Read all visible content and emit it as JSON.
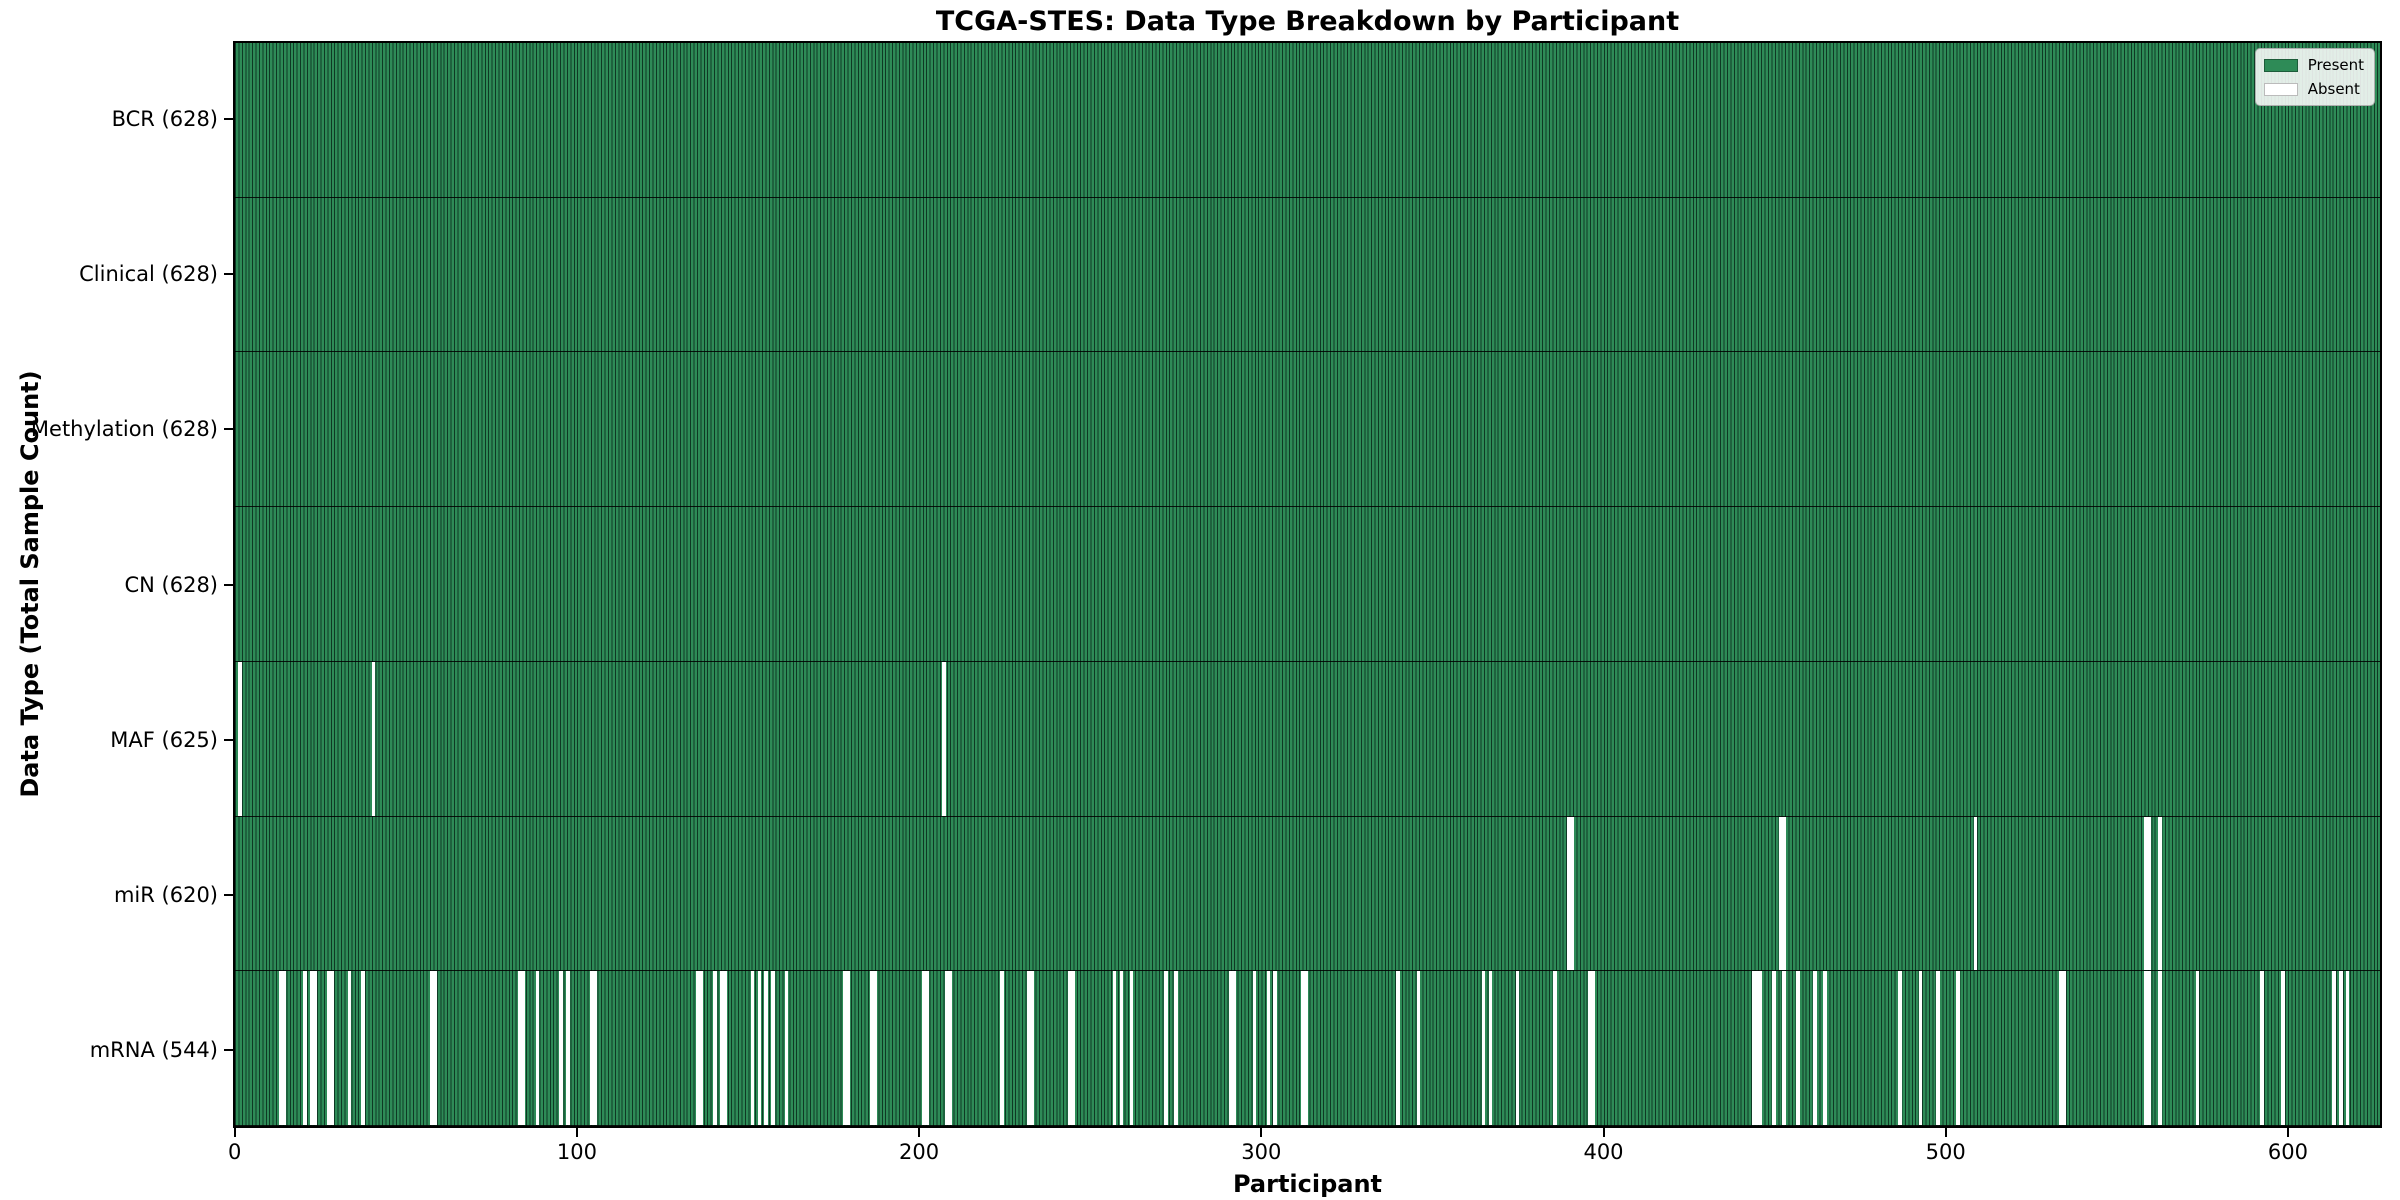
{
  "title": "TCGA-STES: Data Type Breakdown by Participant",
  "axes": {
    "xlabel": "Participant",
    "ylabel": "Data Type (Total Sample Count)"
  },
  "legend": {
    "present_label": "Present",
    "absent_label": "Absent"
  },
  "colors": {
    "present": "#2e8b57",
    "absent": "#ffffff",
    "bar_edge": "#082a1b",
    "spine": "#000000",
    "legend_background": "#fcfcfc",
    "legend_border": "#adadad"
  },
  "chart_data": {
    "type": "heatmap",
    "title": "TCGA-STES: Data Type Breakdown by Participant",
    "xlabel": "Participant",
    "ylabel": "Data Type (Total Sample Count)",
    "x_range": [
      0,
      628
    ],
    "x_ticks": [
      0,
      100,
      200,
      300,
      400,
      500,
      600
    ],
    "n_participants": 628,
    "grid": false,
    "legend_position": "upper right",
    "legend": [
      {
        "label": "Present",
        "color": "#2e8b57"
      },
      {
        "label": "Absent",
        "color": "#ffffff"
      }
    ],
    "rows": [
      {
        "name": "BCR",
        "label": "BCR (628)",
        "present_count": 628,
        "absent_indices": []
      },
      {
        "name": "Clinical",
        "label": "Clinical (628)",
        "present_count": 628,
        "absent_indices": []
      },
      {
        "name": "Methylation",
        "label": "Methylation (628)",
        "present_count": 628,
        "absent_indices": []
      },
      {
        "name": "CN",
        "label": "CN (628)",
        "present_count": 628,
        "absent_indices": []
      },
      {
        "name": "MAF",
        "label": "MAF (625)",
        "present_count": 625,
        "absent_indices": [
          1,
          40,
          207
        ]
      },
      {
        "name": "miR",
        "label": "miR (620)",
        "present_count": 620,
        "absent_indices": [
          390,
          391,
          452,
          453,
          509,
          559,
          560,
          563
        ]
      },
      {
        "name": "mRNA",
        "label": "mRNA (544)",
        "present_count": 544,
        "absent_indices": [
          13,
          14,
          20,
          22,
          23,
          27,
          28,
          33,
          37,
          57,
          58,
          83,
          84,
          88,
          95,
          97,
          104,
          105,
          135,
          136,
          140,
          142,
          143,
          151,
          153,
          155,
          157,
          161,
          178,
          179,
          186,
          187,
          201,
          202,
          208,
          209,
          224,
          232,
          233,
          244,
          245,
          257,
          259,
          262,
          272,
          275,
          291,
          292,
          298,
          302,
          304,
          312,
          313,
          340,
          346,
          365,
          367,
          375,
          386,
          396,
          397,
          444,
          445,
          446,
          450,
          453,
          457,
          462,
          465,
          487,
          493,
          498,
          504,
          534,
          535,
          559,
          560,
          563,
          574,
          593,
          599,
          614,
          616,
          618
        ]
      }
    ]
  }
}
